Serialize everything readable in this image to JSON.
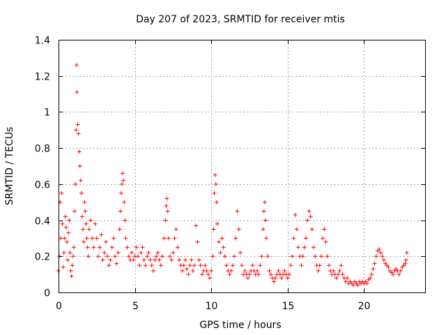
{
  "chart_data": {
    "type": "scatter",
    "title": "Day 207 of 2023, SRMTID for receiver mtis",
    "xlabel": "GPS time / hours",
    "ylabel": "SRMTID / TECUs",
    "xlim": [
      0,
      24
    ],
    "ylim": [
      0,
      1.4
    ],
    "xticks": [
      0,
      5,
      10,
      15,
      20
    ],
    "yticks": [
      0,
      0.2,
      0.4,
      0.6,
      0.8,
      1,
      1.2,
      1.4
    ],
    "xtick_labels": [
      "0",
      "5",
      "10",
      "15",
      "20"
    ],
    "ytick_labels": [
      "0",
      "0.2",
      "0.4",
      "0.6",
      "0.8",
      "1",
      "1.2",
      "1.4"
    ],
    "grid": true,
    "marker": "+",
    "color": "#ff0000",
    "series": [
      {
        "name": "SRMTID",
        "points": [
          [
            0.0,
            0.12
          ],
          [
            0.05,
            0.2
          ],
          [
            0.1,
            0.5
          ],
          [
            0.15,
            0.3
          ],
          [
            0.2,
            0.55
          ],
          [
            0.25,
            0.38
          ],
          [
            0.3,
            0.14
          ],
          [
            0.35,
            0.22
          ],
          [
            0.4,
            0.3
          ],
          [
            0.45,
            0.42
          ],
          [
            0.5,
            0.36
          ],
          [
            0.55,
            0.28
          ],
          [
            0.6,
            0.18
          ],
          [
            0.65,
            0.33
          ],
          [
            0.7,
            0.4
          ],
          [
            0.75,
            0.22
          ],
          [
            0.8,
            0.12
          ],
          [
            0.85,
            0.09
          ],
          [
            0.9,
            0.15
          ],
          [
            0.95,
            0.2
          ],
          [
            1.0,
            0.25
          ],
          [
            1.05,
            0.45
          ],
          [
            1.1,
            0.6
          ],
          [
            1.15,
            0.9
          ],
          [
            1.18,
            1.26
          ],
          [
            1.2,
            1.11
          ],
          [
            1.25,
            0.93
          ],
          [
            1.3,
            0.88
          ],
          [
            1.35,
            0.78
          ],
          [
            1.4,
            0.7
          ],
          [
            1.45,
            0.62
          ],
          [
            1.5,
            0.55
          ],
          [
            1.55,
            0.42
          ],
          [
            1.6,
            0.35
          ],
          [
            1.65,
            0.28
          ],
          [
            1.7,
            0.5
          ],
          [
            1.75,
            0.45
          ],
          [
            1.8,
            0.38
          ],
          [
            1.85,
            0.3
          ],
          [
            1.9,
            0.25
          ],
          [
            1.95,
            0.2
          ],
          [
            2.0,
            0.35
          ],
          [
            2.1,
            0.4
          ],
          [
            2.2,
            0.3
          ],
          [
            2.3,
            0.25
          ],
          [
            2.4,
            0.38
          ],
          [
            2.5,
            0.3
          ],
          [
            2.6,
            0.2
          ],
          [
            2.7,
            0.25
          ],
          [
            2.8,
            0.32
          ],
          [
            2.9,
            0.18
          ],
          [
            3.0,
            0.22
          ],
          [
            3.1,
            0.28
          ],
          [
            3.2,
            0.2
          ],
          [
            3.3,
            0.15
          ],
          [
            3.4,
            0.18
          ],
          [
            3.5,
            0.25
          ],
          [
            3.6,
            0.3
          ],
          [
            3.7,
            0.2
          ],
          [
            3.8,
            0.16
          ],
          [
            3.9,
            0.22
          ],
          [
            4.0,
            0.35
          ],
          [
            4.05,
            0.45
          ],
          [
            4.1,
            0.55
          ],
          [
            4.15,
            0.6
          ],
          [
            4.2,
            0.66
          ],
          [
            4.25,
            0.62
          ],
          [
            4.3,
            0.5
          ],
          [
            4.35,
            0.4
          ],
          [
            4.4,
            0.3
          ],
          [
            4.5,
            0.25
          ],
          [
            4.6,
            0.2
          ],
          [
            4.7,
            0.18
          ],
          [
            4.8,
            0.22
          ],
          [
            4.9,
            0.18
          ],
          [
            5.0,
            0.2
          ],
          [
            5.1,
            0.25
          ],
          [
            5.2,
            0.2
          ],
          [
            5.3,
            0.15
          ],
          [
            5.4,
            0.22
          ],
          [
            5.5,
            0.25
          ],
          [
            5.6,
            0.18
          ],
          [
            5.7,
            0.15
          ],
          [
            5.8,
            0.2
          ],
          [
            5.9,
            0.22
          ],
          [
            6.0,
            0.18
          ],
          [
            6.1,
            0.15
          ],
          [
            6.2,
            0.12
          ],
          [
            6.3,
            0.18
          ],
          [
            6.4,
            0.2
          ],
          [
            6.5,
            0.22
          ],
          [
            6.6,
            0.18
          ],
          [
            6.7,
            0.15
          ],
          [
            6.8,
            0.2
          ],
          [
            6.9,
            0.3
          ],
          [
            7.0,
            0.4
          ],
          [
            7.05,
            0.48
          ],
          [
            7.1,
            0.52
          ],
          [
            7.15,
            0.45
          ],
          [
            7.2,
            0.3
          ],
          [
            7.3,
            0.2
          ],
          [
            7.4,
            0.18
          ],
          [
            7.5,
            0.22
          ],
          [
            7.6,
            0.3
          ],
          [
            7.7,
            0.35
          ],
          [
            7.8,
            0.25
          ],
          [
            7.9,
            0.18
          ],
          [
            8.0,
            0.15
          ],
          [
            8.1,
            0.12
          ],
          [
            8.2,
            0.15
          ],
          [
            8.3,
            0.18
          ],
          [
            8.4,
            0.13
          ],
          [
            8.5,
            0.1
          ],
          [
            8.6,
            0.15
          ],
          [
            8.7,
            0.18
          ],
          [
            8.8,
            0.12
          ],
          [
            8.9,
            0.15
          ],
          [
            9.0,
            0.37
          ],
          [
            9.1,
            0.28
          ],
          [
            9.2,
            0.18
          ],
          [
            9.3,
            0.15
          ],
          [
            9.4,
            0.1
          ],
          [
            9.5,
            0.12
          ],
          [
            9.6,
            0.15
          ],
          [
            9.7,
            0.12
          ],
          [
            9.8,
            0.1
          ],
          [
            9.9,
            0.08
          ],
          [
            10.0,
            0.12
          ],
          [
            10.1,
            0.2
          ],
          [
            10.15,
            0.35
          ],
          [
            10.2,
            0.55
          ],
          [
            10.25,
            0.65
          ],
          [
            10.3,
            0.6
          ],
          [
            10.35,
            0.5
          ],
          [
            10.4,
            0.38
          ],
          [
            10.5,
            0.28
          ],
          [
            10.6,
            0.22
          ],
          [
            10.7,
            0.3
          ],
          [
            10.8,
            0.25
          ],
          [
            10.9,
            0.2
          ],
          [
            11.0,
            0.15
          ],
          [
            11.1,
            0.12
          ],
          [
            11.2,
            0.1
          ],
          [
            11.3,
            0.12
          ],
          [
            11.4,
            0.15
          ],
          [
            11.5,
            0.2
          ],
          [
            11.6,
            0.3
          ],
          [
            11.7,
            0.45
          ],
          [
            11.8,
            0.35
          ],
          [
            11.9,
            0.22
          ],
          [
            12.0,
            0.15
          ],
          [
            12.1,
            0.1
          ],
          [
            12.2,
            0.12
          ],
          [
            12.3,
            0.1
          ],
          [
            12.4,
            0.08
          ],
          [
            12.5,
            0.1
          ],
          [
            12.6,
            0.12
          ],
          [
            12.7,
            0.15
          ],
          [
            12.8,
            0.12
          ],
          [
            12.9,
            0.1
          ],
          [
            13.0,
            0.12
          ],
          [
            13.1,
            0.1
          ],
          [
            13.2,
            0.15
          ],
          [
            13.3,
            0.2
          ],
          [
            13.4,
            0.35
          ],
          [
            13.45,
            0.45
          ],
          [
            13.5,
            0.5
          ],
          [
            13.55,
            0.4
          ],
          [
            13.6,
            0.3
          ],
          [
            13.7,
            0.2
          ],
          [
            13.8,
            0.12
          ],
          [
            13.9,
            0.1
          ],
          [
            14.0,
            0.08
          ],
          [
            14.1,
            0.06
          ],
          [
            14.2,
            0.08
          ],
          [
            14.3,
            0.1
          ],
          [
            14.4,
            0.12
          ],
          [
            14.5,
            0.1
          ],
          [
            14.6,
            0.08
          ],
          [
            14.7,
            0.1
          ],
          [
            14.8,
            0.12
          ],
          [
            14.9,
            0.1
          ],
          [
            15.0,
            0.08
          ],
          [
            15.1,
            0.1
          ],
          [
            15.2,
            0.15
          ],
          [
            15.3,
            0.2
          ],
          [
            15.4,
            0.3
          ],
          [
            15.5,
            0.43
          ],
          [
            15.6,
            0.35
          ],
          [
            15.7,
            0.25
          ],
          [
            15.8,
            0.2
          ],
          [
            15.9,
            0.15
          ],
          [
            16.0,
            0.2
          ],
          [
            16.1,
            0.25
          ],
          [
            16.2,
            0.3
          ],
          [
            16.3,
            0.4
          ],
          [
            16.4,
            0.45
          ],
          [
            16.5,
            0.42
          ],
          [
            16.6,
            0.35
          ],
          [
            16.7,
            0.25
          ],
          [
            16.8,
            0.2
          ],
          [
            16.9,
            0.15
          ],
          [
            17.0,
            0.12
          ],
          [
            17.1,
            0.15
          ],
          [
            17.2,
            0.2
          ],
          [
            17.3,
            0.3
          ],
          [
            17.4,
            0.35
          ],
          [
            17.5,
            0.28
          ],
          [
            17.6,
            0.2
          ],
          [
            17.7,
            0.15
          ],
          [
            17.8,
            0.12
          ],
          [
            17.9,
            0.1
          ],
          [
            18.0,
            0.12
          ],
          [
            18.1,
            0.1
          ],
          [
            18.2,
            0.08
          ],
          [
            18.3,
            0.1
          ],
          [
            18.4,
            0.12
          ],
          [
            18.5,
            0.15
          ],
          [
            18.6,
            0.1
          ],
          [
            18.7,
            0.08
          ],
          [
            18.8,
            0.06
          ],
          [
            18.9,
            0.08
          ],
          [
            19.0,
            0.05
          ],
          [
            19.1,
            0.06
          ],
          [
            19.2,
            0.05
          ],
          [
            19.3,
            0.04
          ],
          [
            19.4,
            0.06
          ],
          [
            19.5,
            0.05
          ],
          [
            19.6,
            0.04
          ],
          [
            19.7,
            0.06
          ],
          [
            19.8,
            0.05
          ],
          [
            19.9,
            0.06
          ],
          [
            20.0,
            0.05
          ],
          [
            20.1,
            0.06
          ],
          [
            20.2,
            0.05
          ],
          [
            20.3,
            0.07
          ],
          [
            20.4,
            0.08
          ],
          [
            20.5,
            0.1
          ],
          [
            20.6,
            0.13
          ],
          [
            20.7,
            0.16
          ],
          [
            20.8,
            0.2
          ],
          [
            20.9,
            0.23
          ],
          [
            21.0,
            0.24
          ],
          [
            21.1,
            0.22
          ],
          [
            21.2,
            0.2
          ],
          [
            21.3,
            0.18
          ],
          [
            21.4,
            0.16
          ],
          [
            21.5,
            0.15
          ],
          [
            21.6,
            0.14
          ],
          [
            21.7,
            0.12
          ],
          [
            21.8,
            0.11
          ],
          [
            21.9,
            0.1
          ],
          [
            22.0,
            0.12
          ],
          [
            22.1,
            0.13
          ],
          [
            22.2,
            0.12
          ],
          [
            22.3,
            0.1
          ],
          [
            22.4,
            0.12
          ],
          [
            22.5,
            0.14
          ],
          [
            22.6,
            0.15
          ],
          [
            22.7,
            0.16
          ],
          [
            22.75,
            0.18
          ],
          [
            22.8,
            0.22
          ]
        ]
      }
    ]
  }
}
